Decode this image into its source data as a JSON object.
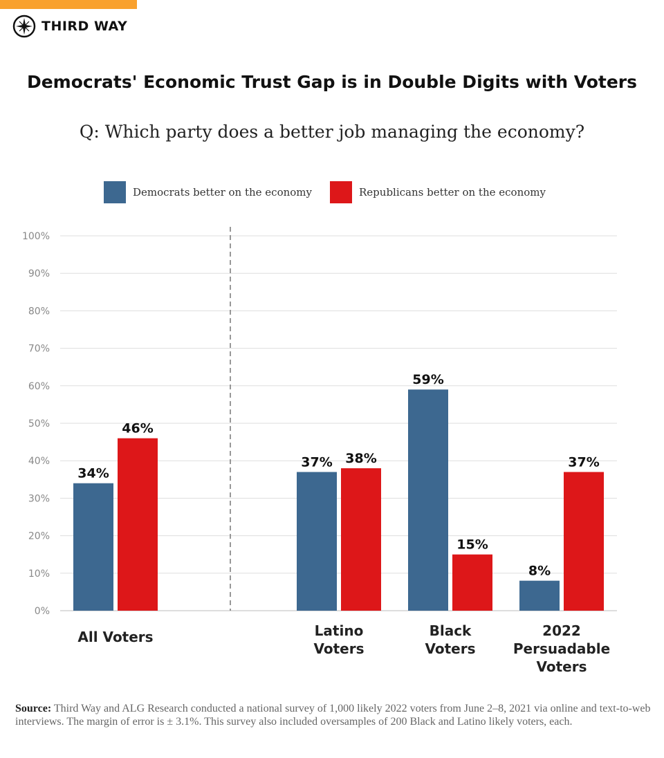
{
  "brand": {
    "name": "THIRD WAY",
    "accent": "#f9a12e",
    "logo_icon": "compass-icon"
  },
  "chart_data": {
    "type": "bar",
    "title": "Democrats' Economic Trust Gap is in Double Digits with Voters",
    "subtitle": "Q: Which party does a better job managing the economy?",
    "categories": [
      [
        "All Voters"
      ],
      [
        "Latino",
        "Voters"
      ],
      [
        "Black",
        "Voters"
      ],
      [
        "2022",
        "Persuadable",
        "Voters"
      ]
    ],
    "series": [
      {
        "name": "Democrats better on the economy",
        "color": "#3d6890",
        "values": [
          34,
          37,
          59,
          8
        ],
        "labels": [
          "34%",
          "37%",
          "59%",
          "8%"
        ]
      },
      {
        "name": "Republicans better on the economy",
        "color": "#dd1719",
        "values": [
          46,
          38,
          15,
          37
        ],
        "labels": [
          "46%",
          "38%",
          "15%",
          "37%"
        ]
      }
    ],
    "ylim": [
      0,
      100
    ],
    "yticks": [
      "0%",
      "10%",
      "20%",
      "30%",
      "40%",
      "50%",
      "60%",
      "70%",
      "80%",
      "90%",
      "100%"
    ],
    "grid": true,
    "legend": "top",
    "separator_after_category": 0
  },
  "source": {
    "label": "Source:",
    "text": " Third Way and ALG Research conducted a national survey of 1,000 likely 2022 voters from June 2–8, 2021 via online and text-to-web interviews. The margin of error is ± 3.1%. This survey also included oversamples of 200 Black and Latino likely voters, each."
  }
}
